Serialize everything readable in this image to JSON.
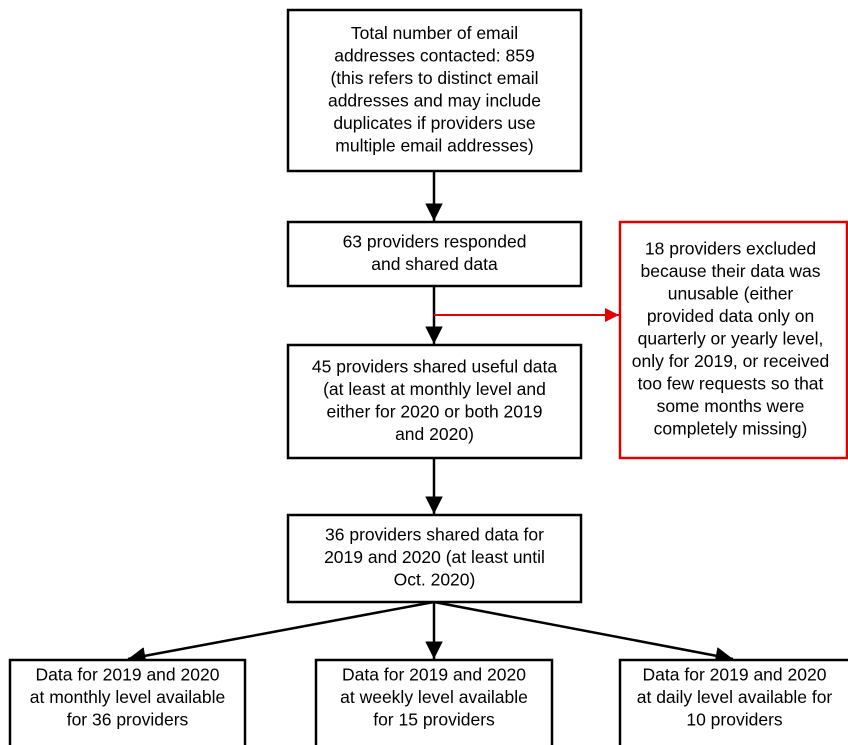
{
  "nodes": [
    {
      "lines": [
        "Total number of email",
        "addresses contacted: 859",
        "(this refers to distinct email",
        "addresses and may include",
        "duplicates if providers use",
        "multiple email addresses)"
      ]
    },
    {
      "lines": [
        "63 providers responded",
        "and shared data"
      ]
    },
    {
      "lines": [
        "45 providers shared useful data",
        "(at least at monthly level and",
        "either for 2020 or both 2019",
        "and 2020)"
      ]
    },
    {
      "lines": [
        "18 providers excluded",
        "because their data was",
        "unusable (either",
        "provided data only on",
        "quarterly or yearly level,",
        "only for 2019, or received",
        "too few requests so that",
        "some months were",
        "completely missing)"
      ]
    },
    {
      "lines": [
        "36 providers shared data for",
        "2019 and 2020 (at least until",
        "Oct. 2020)"
      ]
    },
    {
      "lines": [
        "Data for 2019 and 2020",
        "at monthly level available",
        "for 36 providers"
      ]
    },
    {
      "lines": [
        "Data for 2019 and 2020",
        "at weekly level available",
        "for 15 providers"
      ]
    },
    {
      "lines": [
        "Data for 2019 and 2020",
        "at daily level available for",
        "10 providers"
      ]
    }
  ]
}
